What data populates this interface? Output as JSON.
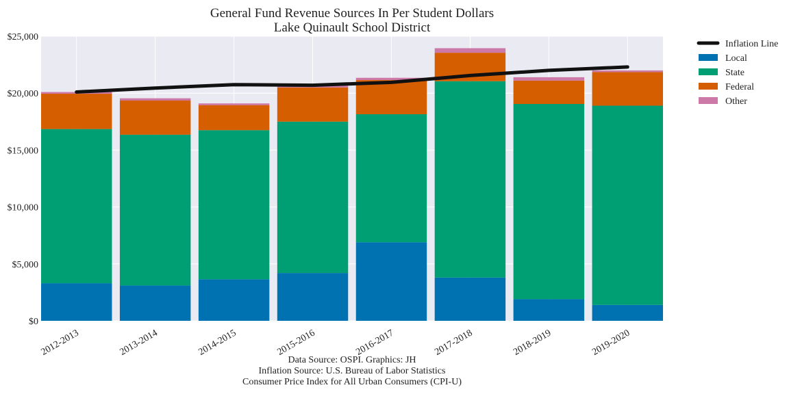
{
  "chart_data": {
    "type": "bar",
    "stacked": true,
    "title": "General Fund Revenue Sources In Per Student Dollars",
    "subtitle": "Lake Quinault School District",
    "categories": [
      "2012-2013",
      "2013-2014",
      "2014-2015",
      "2015-2016",
      "2016-2017",
      "2017-2018",
      "2018-2019",
      "2019-2020"
    ],
    "series": [
      {
        "name": "Local",
        "color": "#0072b2",
        "values": [
          3300,
          3100,
          3650,
          4200,
          6900,
          3800,
          1900,
          1400
        ]
      },
      {
        "name": "State",
        "color": "#009e73",
        "values": [
          13550,
          13250,
          13100,
          13300,
          11250,
          17250,
          17150,
          17500
        ]
      },
      {
        "name": "Federal",
        "color": "#d55e00",
        "values": [
          3100,
          3000,
          2200,
          3000,
          3000,
          2500,
          2050,
          2950
        ]
      },
      {
        "name": "Other",
        "color": "#cc79a7",
        "values": [
          150,
          200,
          150,
          300,
          200,
          400,
          300,
          150
        ]
      }
    ],
    "line": {
      "name": "Inflation Line",
      "color": "#111111",
      "values": [
        20100,
        20450,
        20750,
        20700,
        20950,
        21550,
        22000,
        22300
      ]
    },
    "ylim": [
      0,
      25000
    ],
    "yticks": [
      0,
      5000,
      10000,
      15000,
      20000,
      25000
    ],
    "ytick_labels": [
      "$0",
      "$5,000",
      "$10,000",
      "$15,000",
      "$20,000",
      "$25,000"
    ],
    "xlabel": "",
    "ylabel": "",
    "grid": true,
    "legend_position": "outside-top-right",
    "caption_lines": [
      "Data Source: OSPI. Graphics: JH",
      "Inflation Source: U.S. Bureau of Labor Statistics",
      "Consumer Price Index for All Urban Consumers (CPI-U)"
    ]
  }
}
